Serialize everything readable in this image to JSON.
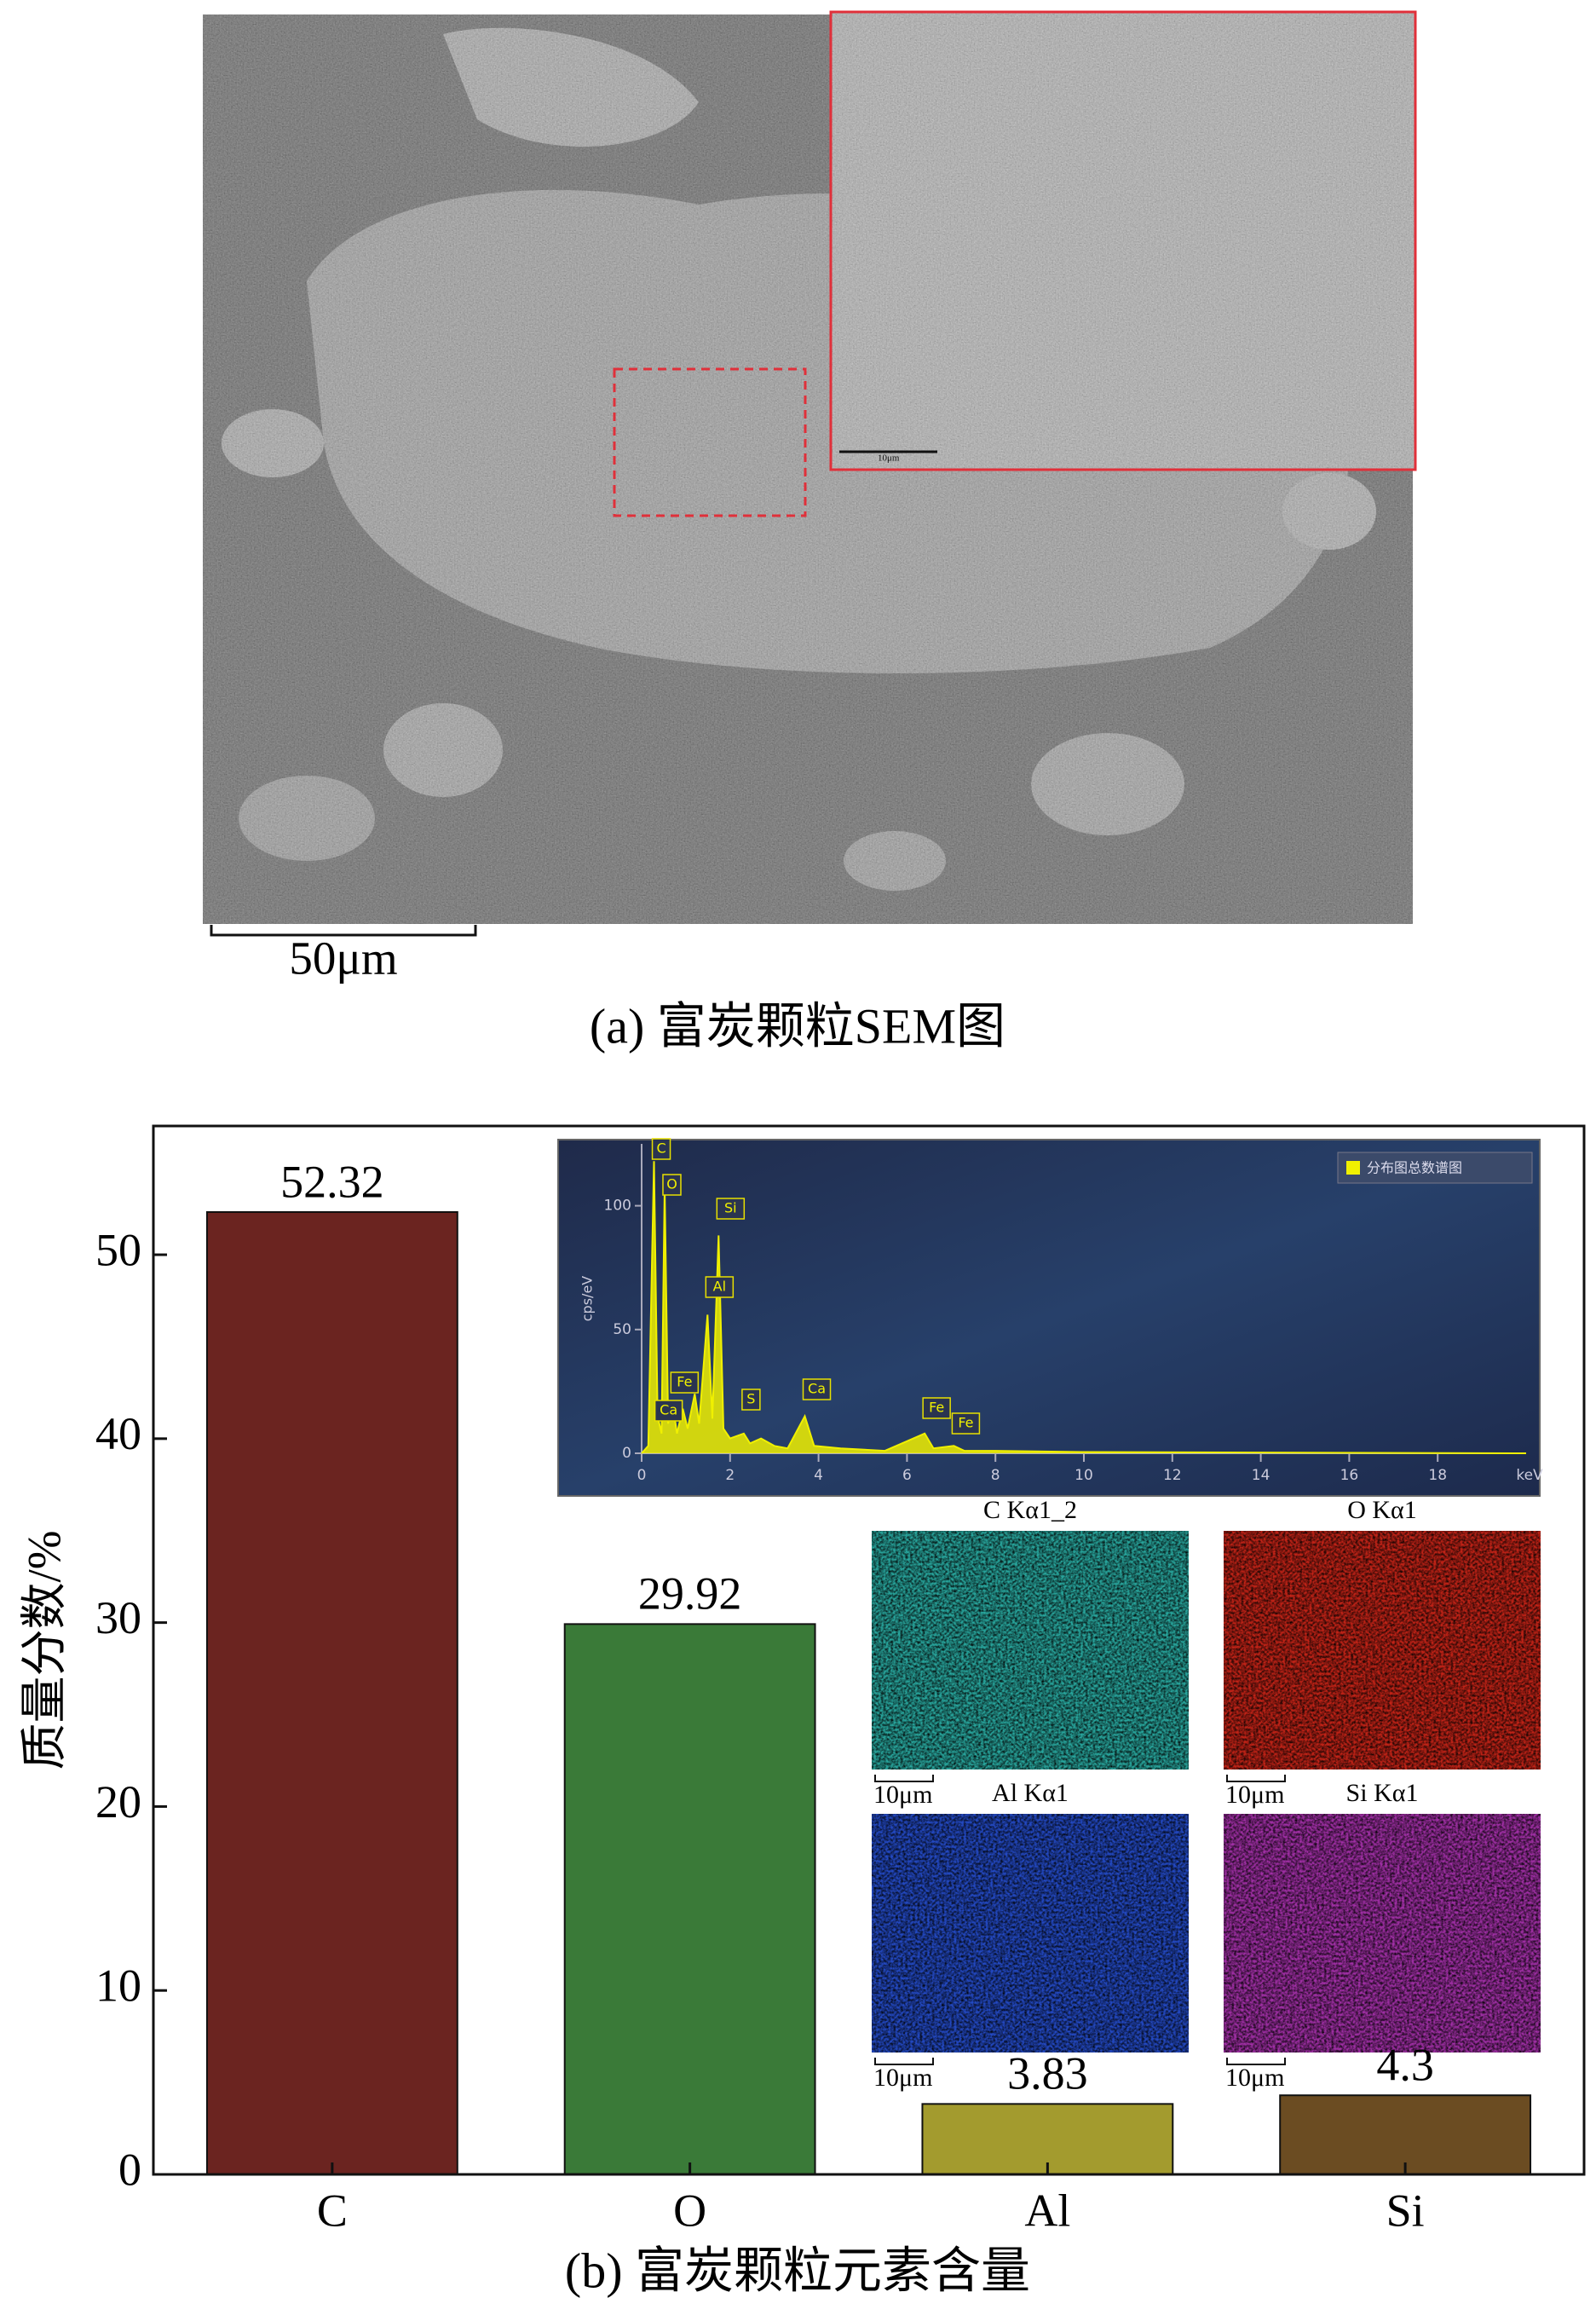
{
  "figure_a": {
    "scale_bar": "50μm",
    "inset_scale_bar": "10μm",
    "caption": "(a) 富炭颗粒SEM图"
  },
  "chart_data": [
    {
      "type": "bar",
      "caption": "(b) 富炭颗粒元素含量",
      "y_label": "质量分数/%",
      "categories": [
        "C",
        "O",
        "Al",
        "Si"
      ],
      "values": [
        52.32,
        29.92,
        3.83,
        4.3
      ],
      "colors": [
        "#6b2420",
        "#3a7a38",
        "#a39b2e",
        "#6b4c22"
      ],
      "ylim": [
        0,
        57
      ],
      "yticks": [
        0,
        10,
        20,
        30,
        40,
        50
      ]
    },
    {
      "type": "line",
      "y_label": "cps/eV",
      "x_label": "keV",
      "xlim": [
        0,
        20
      ],
      "xticks": [
        0,
        2,
        4,
        6,
        8,
        10,
        12,
        14,
        16,
        18
      ],
      "ylim": [
        0,
        125
      ],
      "yticks": [
        0,
        50,
        100
      ],
      "legend": "top-right",
      "series": [
        {
          "name": "分布图总数谱图",
          "color": "#f0f000",
          "x": [
            0,
            0.15,
            0.28,
            0.36,
            0.45,
            0.52,
            0.6,
            0.7,
            0.8,
            0.93,
            1.04,
            1.2,
            1.3,
            1.49,
            1.6,
            1.74,
            1.85,
            2.0,
            2.31,
            2.45,
            2.7,
            3.0,
            3.3,
            3.69,
            3.9,
            4.5,
            5.5,
            6.4,
            6.6,
            7.06,
            7.3,
            8,
            10,
            14,
            20
          ],
          "values": [
            0,
            3,
            118,
            15,
            8,
            108,
            12,
            20,
            8,
            18,
            10,
            24,
            12,
            56,
            14,
            88,
            10,
            6,
            8,
            4,
            6,
            3,
            2,
            15,
            3,
            2,
            1,
            8,
            2,
            3,
            1,
            1,
            0.5,
            0.3,
            0
          ]
        }
      ],
      "annotations": [
        {
          "text": "C",
          "x": 0.28
        },
        {
          "text": "O",
          "x": 0.52
        },
        {
          "text": "Si",
          "x": 1.74
        },
        {
          "text": "Al",
          "x": 1.49
        },
        {
          "text": "Fe",
          "x": 0.7
        },
        {
          "text": "S",
          "x": 2.31
        },
        {
          "text": "Ca",
          "x": 3.69
        },
        {
          "text": "Ca",
          "x": 0.34
        },
        {
          "text": "Fe",
          "x": 6.4
        },
        {
          "text": "Fe",
          "x": 7.06
        }
      ]
    }
  ],
  "element_maps": [
    {
      "label": "C Kα1_2",
      "scale_bar": "10μm",
      "color": "#30d8cc"
    },
    {
      "label": "O Kα1",
      "scale_bar": "10μm",
      "color": "#ff2a1a"
    },
    {
      "label": "Al Kα1",
      "scale_bar": "10μm",
      "color": "#2a5cff"
    },
    {
      "label": "Si Kα1",
      "scale_bar": "10μm",
      "color": "#d23ad8"
    }
  ]
}
